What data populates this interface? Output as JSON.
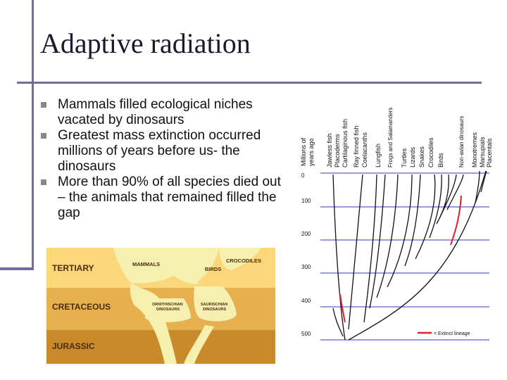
{
  "slide": {
    "title": "Adaptive radiation",
    "bullets": [
      "Mammals filled ecological niches vacated by dinosaurs",
      "Greatest mass extinction occurred millions of years before us- the dinosaurs",
      "More than 90% of all species died out – the animals that remained filled the gap"
    ]
  },
  "geologic_figure": {
    "eras": [
      "TERTIARY",
      "CRETACEOUS",
      "JURASSIC"
    ],
    "labels": {
      "mammals": "MAMMALS",
      "crocodiles": "CROCODILES",
      "birds": "BIRDS",
      "ornithischian": [
        "ORNITHISCHIAN",
        "DINOSAURS"
      ],
      "saurischian": [
        "SAURISCHIAN",
        "DINOSAURS"
      ]
    },
    "colors": {
      "tertiary": "#fbd77a",
      "cretaceous": "#e7b04f",
      "jurassic": "#c98a2c",
      "lineage": "#f5efb0"
    }
  },
  "phylo_tree": {
    "axis_label": [
      "Millions of",
      "years ago"
    ],
    "ticks": [
      "0",
      "100",
      "200",
      "300",
      "400",
      "500"
    ],
    "taxa": [
      "Jawless fish",
      "Placoderms",
      "Cartilaginous fish",
      "Ray finned fish",
      "Coelacanths",
      "Lungfish",
      "Frogs and Salamanders",
      "Turtles",
      "Lizards",
      "Snakes",
      "Crocodiles",
      "Birds",
      "Non-avian dinosaurs",
      "Monotremes",
      "Marsupials",
      "Placentals"
    ],
    "legend": "= Extinct lineage",
    "colors": {
      "gridline": "#2b3bbf",
      "lineage": "#111111",
      "extinct": "#e0202a"
    }
  }
}
